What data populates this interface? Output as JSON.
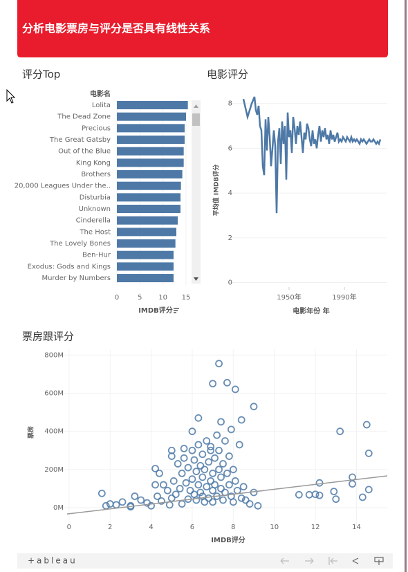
{
  "header": {
    "title": "分析电影票房与评分是否具有线性关系"
  },
  "chart_data": [
    {
      "type": "bar",
      "title": "评分Top",
      "orientation": "horizontal",
      "y_label": "电影名",
      "x_label": "IMDB评分",
      "color": "#4e79a7",
      "categories": [
        "Lolita",
        "The Dead Zone",
        "Precious",
        "The Great Gatsby",
        "Out of the Blue",
        "King Kong",
        "Brothers",
        "20,000 Leagues Under the..",
        "Disturbia",
        "Unknown",
        "Cinderella",
        "The Host",
        "The Lovely Bones",
        "Ben-Hur",
        "Exodus: Gods and Kings",
        "Murder by Numbers"
      ],
      "values": [
        15.4,
        15.0,
        14.7,
        14.7,
        14.5,
        14.5,
        14.2,
        13.9,
        13.8,
        13.8,
        13.2,
        12.9,
        12.7,
        12.3,
        12.3,
        12.3
      ],
      "xlim": [
        -0.6,
        17.4
      ],
      "xticks": [
        0,
        5,
        10,
        15
      ],
      "grid": true
    },
    {
      "type": "line",
      "title": "电影评分",
      "x_label": "电影年份 年",
      "y_label": "平均值 IMDB评分",
      "color": "#4e79a7",
      "x": [
        1917,
        1920,
        1923,
        1925,
        1926,
        1927,
        1928,
        1929,
        1930,
        1931,
        1932,
        1933,
        1934,
        1935,
        1936,
        1937,
        1938,
        1939,
        1940,
        1941,
        1942,
        1943,
        1944,
        1945,
        1946,
        1947,
        1948,
        1949,
        1950,
        1951,
        1952,
        1953,
        1954,
        1955,
        1956,
        1957,
        1958,
        1959,
        1960,
        1961,
        1962,
        1963,
        1964,
        1965,
        1966,
        1967,
        1968,
        1969,
        1970,
        1971,
        1972,
        1973,
        1974,
        1975,
        1976,
        1977,
        1978,
        1979,
        1980,
        1981,
        1982,
        1983,
        1984,
        1985,
        1986,
        1987,
        1988,
        1989,
        1990,
        1991,
        1992,
        1993,
        1994,
        1995,
        1996,
        1997,
        1998,
        1999,
        2000,
        2001,
        2002,
        2003,
        2004,
        2005,
        2006,
        2007,
        2008,
        2009,
        2010,
        2011,
        2012,
        2013,
        2014,
        2015,
        2016
      ],
      "values": [
        8.2,
        7.4,
        8.0,
        8.3,
        7.7,
        7.5,
        7.9,
        7.0,
        6.8,
        5.2,
        4.8,
        7.3,
        5.9,
        7.4,
        6.5,
        5.2,
        6.0,
        6.8,
        6.1,
        3.1,
        6.3,
        6.9,
        5.3,
        7.2,
        6.2,
        7.0,
        4.6,
        7.6,
        6.5,
        6.8,
        5.8,
        7.4,
        6.9,
        6.2,
        7.0,
        6.6,
        7.2,
        6.5,
        5.8,
        6.7,
        6.4,
        7.1,
        6.9,
        6.4,
        6.1,
        6.8,
        6.2,
        6.4,
        6.0,
        6.6,
        7.0,
        6.3,
        6.8,
        6.5,
        6.9,
        6.4,
        6.6,
        6.2,
        6.8,
        6.4,
        6.6,
        6.3,
        6.5,
        6.7,
        6.3,
        6.4,
        6.3,
        6.5,
        6.4,
        6.3,
        6.5,
        6.4,
        6.3,
        6.5,
        6.3,
        6.4,
        6.3,
        6.4,
        6.3,
        6.2,
        6.4,
        6.3,
        6.4,
        6.3,
        6.2,
        6.3,
        6.4,
        6.3,
        6.3,
        6.4,
        6.3,
        6.2,
        6.3,
        6.2,
        6.4
      ],
      "xlim": [
        1906,
        2021
      ],
      "xticks": [
        {
          "value": 1950,
          "label": "1950年"
        },
        {
          "value": 1990,
          "label": "1990年"
        }
      ],
      "ylim": [
        -0.2,
        8.3
      ],
      "yticks": [
        0,
        2,
        4,
        6,
        8
      ],
      "grid": true
    },
    {
      "type": "scatter",
      "title": "票房跟评分",
      "x_label": "IMDB评分",
      "y_label": "票房",
      "color": "#4e79a7",
      "x": [
        1.6,
        1.8,
        2.0,
        2.3,
        2.6,
        3.0,
        3.2,
        3.5,
        3.8,
        4.0,
        4.2,
        4.3,
        4.5,
        4.6,
        4.8,
        4.9,
        5.0,
        5.0,
        5.1,
        5.2,
        5.3,
        5.4,
        5.5,
        5.5,
        5.6,
        5.7,
        5.8,
        5.8,
        5.9,
        6.0,
        6.0,
        6.1,
        6.1,
        6.2,
        6.2,
        6.3,
        6.3,
        6.4,
        6.4,
        6.5,
        6.5,
        6.5,
        6.6,
        6.6,
        6.7,
        6.7,
        6.8,
        6.8,
        6.9,
        6.9,
        7.0,
        7.0,
        7.0,
        7.1,
        7.1,
        7.2,
        7.2,
        7.3,
        7.3,
        7.4,
        7.4,
        7.5,
        7.5,
        7.6,
        7.6,
        7.7,
        7.8,
        7.8,
        7.9,
        8.0,
        8.0,
        8.1,
        8.2,
        8.3,
        8.4,
        8.5,
        8.6,
        8.8,
        9.0,
        9.2,
        7.3,
        7.0,
        7.7,
        8.1,
        9.0,
        13.2,
        14.5,
        14.6,
        13.8,
        13.8,
        12.2,
        12.2,
        11.2,
        11.7,
        12.0,
        12.9,
        13.0,
        14.3,
        14.6,
        6.3,
        6.0,
        7.4,
        8.4,
        5.0,
        4.2,
        5.6,
        7.9,
        6.9,
        4.4,
        3.0
      ],
      "values": [
        75,
        10,
        20,
        15,
        30,
        5,
        60,
        40,
        25,
        10,
        205,
        60,
        35,
        120,
        90,
        15,
        300,
        50,
        140,
        70,
        230,
        100,
        20,
        180,
        260,
        130,
        45,
        210,
        90,
        300,
        150,
        70,
        250,
        40,
        190,
        120,
        330,
        80,
        220,
        60,
        160,
        280,
        30,
        200,
        110,
        350,
        50,
        240,
        140,
        320,
        90,
        180,
        30,
        260,
        120,
        380,
        60,
        200,
        300,
        100,
        160,
        40,
        230,
        350,
        80,
        180,
        120,
        270,
        60,
        200,
        30,
        140,
        90,
        330,
        50,
        110,
        40,
        20,
        80,
        10,
        755,
        650,
        655,
        620,
        530,
        400,
        435,
        285,
        160,
        125,
        130,
        65,
        68,
        68,
        70,
        85,
        45,
        55,
        95,
        470,
        400,
        450,
        460,
        270,
        120,
        310,
        410,
        300,
        180,
        10
      ],
      "trend_line": {
        "x": [
          -0.1,
          15.5
        ],
        "values": [
          -33,
          167
        ],
        "color": "#999999"
      },
      "xlim": [
        -0.5,
        15.5
      ],
      "xticks": [
        0,
        2,
        4,
        6,
        8,
        10,
        12,
        14
      ],
      "ylim": [
        -94,
        830
      ],
      "yticks": [
        {
          "value": 0,
          "label": "0M"
        },
        {
          "value": 200,
          "label": "200M"
        },
        {
          "value": 400,
          "label": "400M"
        },
        {
          "value": 600,
          "label": "600M"
        },
        {
          "value": 800,
          "label": "800M"
        }
      ],
      "grid": true
    }
  ],
  "footer": {
    "brand": "+ableau"
  }
}
